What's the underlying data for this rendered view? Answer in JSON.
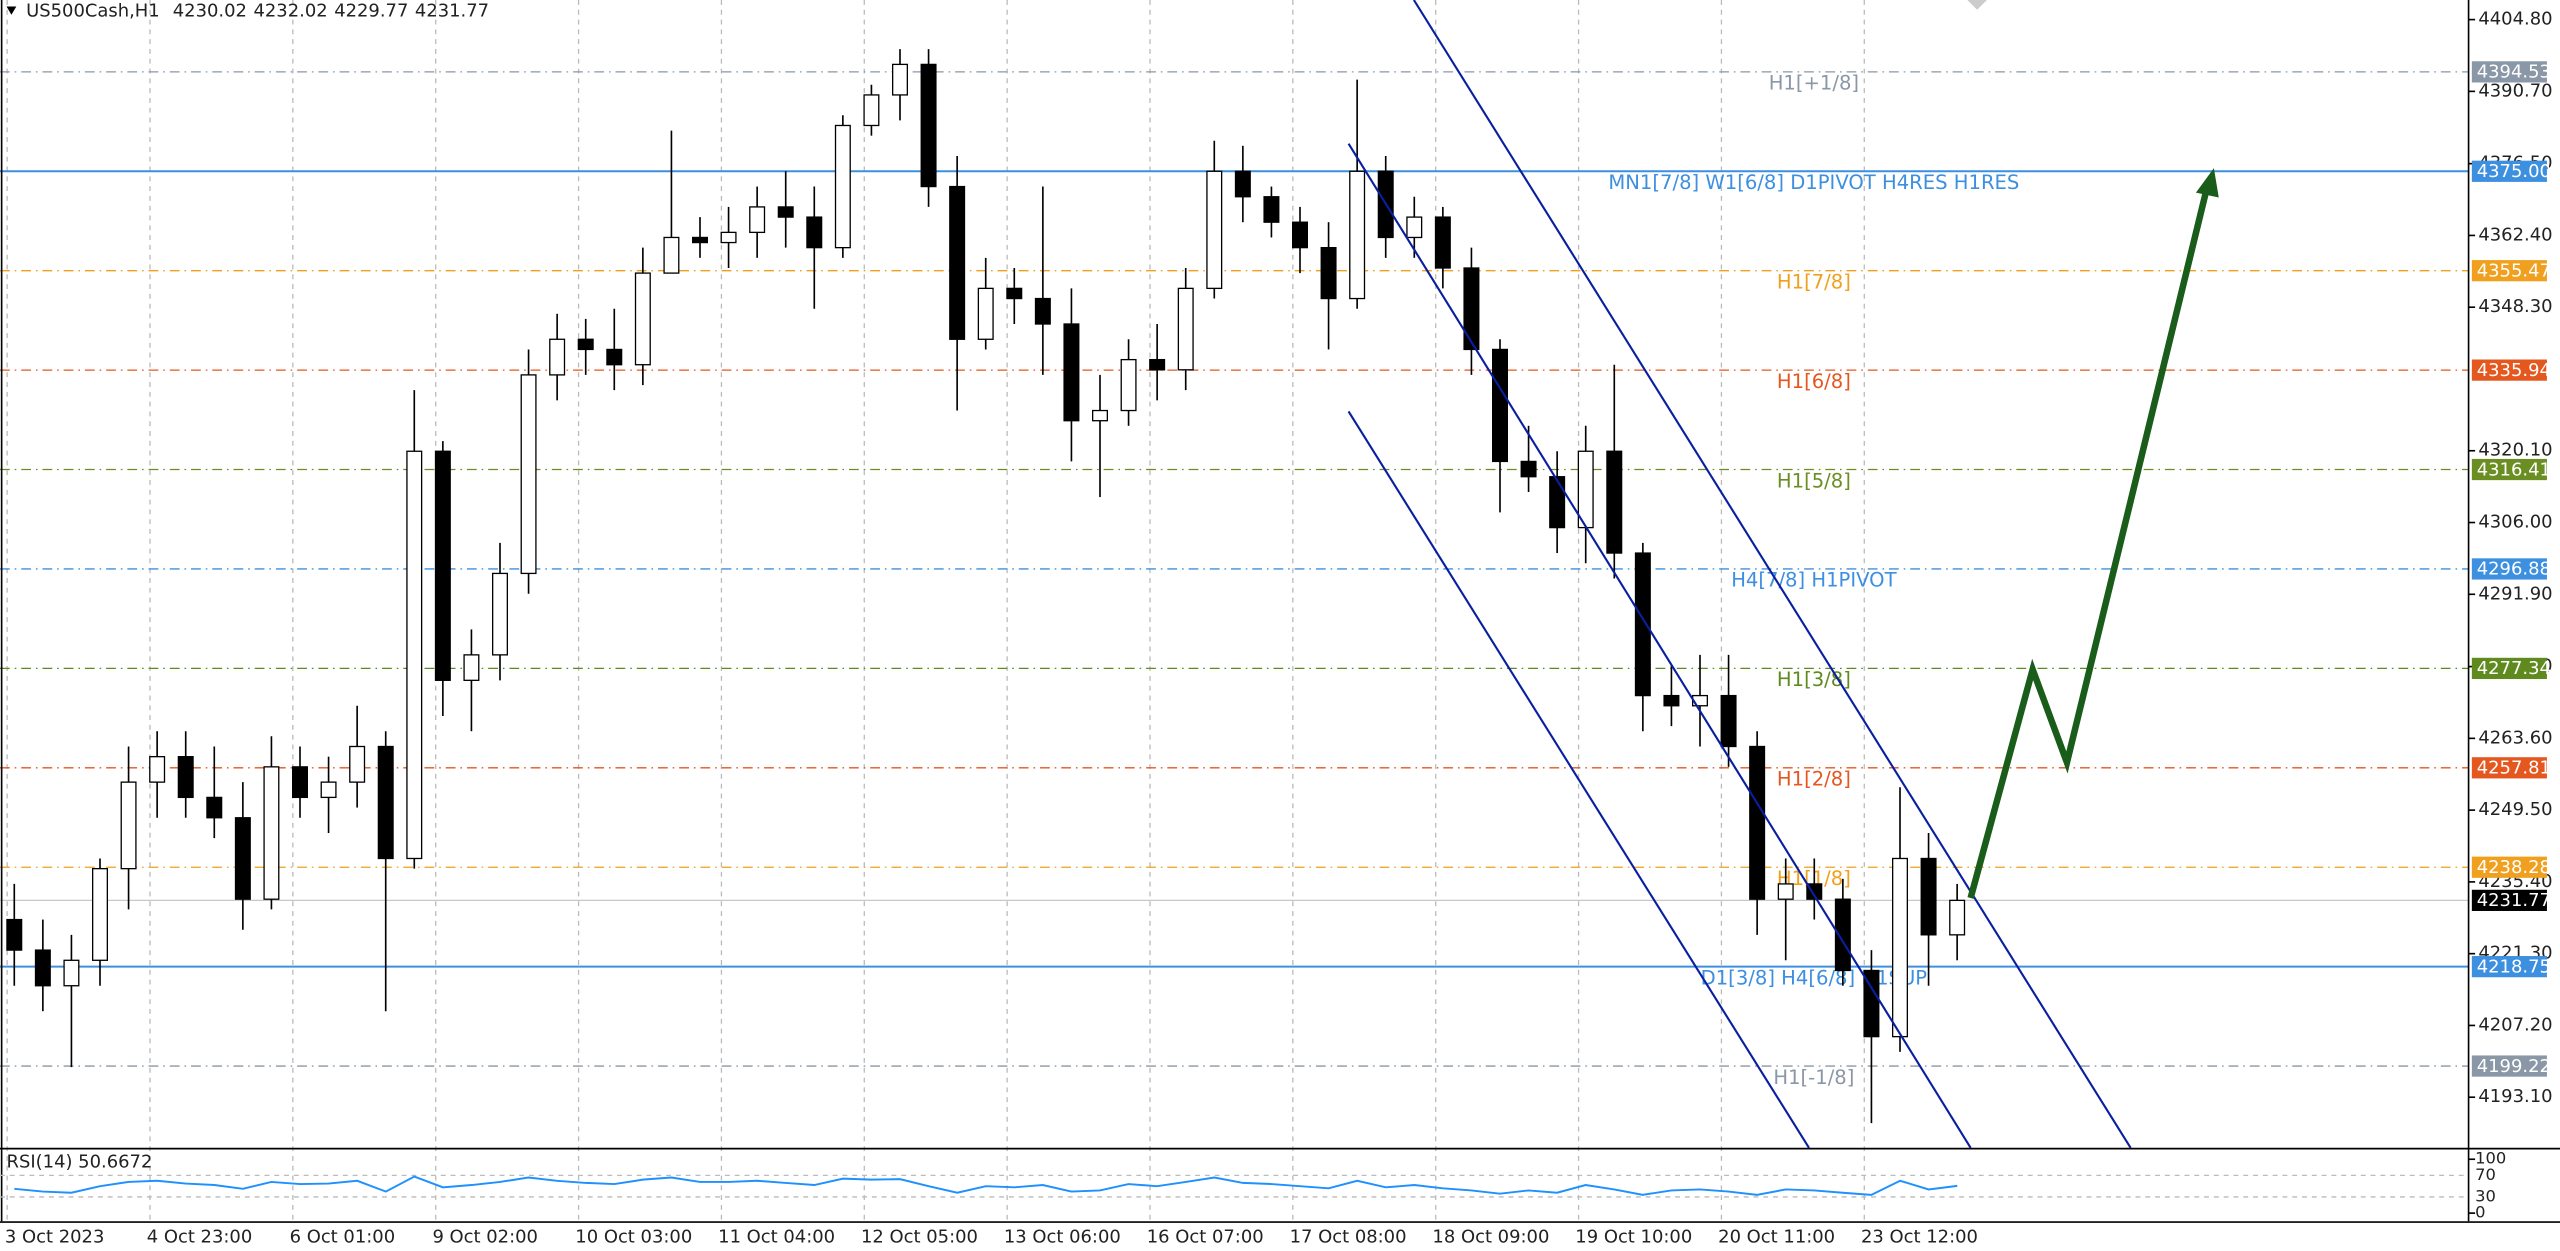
{
  "chart_data": {
    "type": "candlestick",
    "title": "US500Cash,H1",
    "quote": [
      4230.02,
      4232.02,
      4229.77,
      4231.77
    ],
    "x": [
      2,
      6,
      10,
      14,
      18,
      22,
      26,
      30,
      34,
      38,
      42,
      46,
      50,
      54,
      58,
      62,
      66,
      70,
      74,
      78,
      82,
      86,
      90,
      94,
      98,
      102,
      106,
      110,
      114,
      118,
      122,
      126,
      130,
      134,
      138,
      142,
      146,
      150,
      154,
      158,
      162,
      166,
      170,
      174,
      178,
      182,
      186,
      190,
      194,
      198,
      202,
      206,
      210,
      214,
      218,
      222,
      226,
      230,
      234,
      238,
      242,
      246,
      250,
      254,
      258,
      262,
      266,
      270,
      274
    ],
    "open": [
      4228,
      4222,
      4215,
      4220,
      4238,
      4255,
      4260,
      4252,
      4248,
      4232,
      4258,
      4252,
      4255,
      4262,
      4240,
      4320,
      4275,
      4280,
      4296,
      4335,
      4342,
      4340,
      4337,
      4355,
      4362,
      4361,
      4363,
      4368,
      4366,
      4360,
      4384,
      4390,
      4396,
      4372,
      4342,
      4352,
      4350,
      4345,
      4326,
      4328,
      4338,
      4336,
      4352,
      4375,
      4370,
      4365,
      4360,
      4350,
      4375,
      4362,
      4366,
      4356,
      4340,
      4318,
      4315,
      4305,
      4320,
      4300,
      4272,
      4270,
      4272,
      4262,
      4232,
      4235,
      4232,
      4218,
      4205,
      4240,
      4225
    ],
    "high": [
      4235,
      4228,
      4225,
      4240,
      4262,
      4265,
      4265,
      4262,
      4255,
      4264,
      4262,
      4260,
      4270,
      4265,
      4332,
      4322,
      4285,
      4302,
      4340,
      4347,
      4346,
      4348,
      4360,
      4383,
      4366,
      4368,
      4372,
      4375,
      4372,
      4386,
      4392,
      4399,
      4399,
      4378,
      4358,
      4356,
      4372,
      4352,
      4335,
      4342,
      4345,
      4356,
      4381,
      4380,
      4372,
      4368,
      4365,
      4393,
      4378,
      4370,
      4368,
      4360,
      4342,
      4325,
      4320,
      4325,
      4337,
      4302,
      4278,
      4280,
      4280,
      4265,
      4240,
      4240,
      4236,
      4222,
      4254,
      4245,
      4235
    ],
    "low": [
      4215,
      4210,
      4199,
      4215,
      4230,
      4248,
      4248,
      4244,
      4226,
      4230,
      4248,
      4245,
      4250,
      4210,
      4238,
      4268,
      4265,
      4275,
      4292,
      4330,
      4335,
      4332,
      4333,
      4355,
      4358,
      4356,
      4358,
      4360,
      4348,
      4358,
      4382,
      4385,
      4368,
      4328,
      4340,
      4345,
      4335,
      4318,
      4311,
      4325,
      4330,
      4332,
      4350,
      4365,
      4362,
      4355,
      4340,
      4348,
      4358,
      4358,
      4352,
      4335,
      4308,
      4312,
      4300,
      4298,
      4295,
      4265,
      4266,
      4262,
      4258,
      4225,
      4220,
      4228,
      4215,
      4188,
      4202,
      4215,
      4220
    ],
    "close": [
      4222,
      4215,
      4220,
      4238,
      4255,
      4260,
      4252,
      4248,
      4232,
      4258,
      4252,
      4255,
      4262,
      4240,
      4320,
      4275,
      4280,
      4296,
      4335,
      4342,
      4340,
      4337,
      4355,
      4362,
      4361,
      4363,
      4368,
      4366,
      4360,
      4384,
      4390,
      4396,
      4372,
      4342,
      4352,
      4350,
      4345,
      4326,
      4328,
      4338,
      4336,
      4352,
      4375,
      4370,
      4365,
      4360,
      4350,
      4375,
      4362,
      4366,
      4356,
      4340,
      4318,
      4315,
      4305,
      4320,
      4300,
      4272,
      4270,
      4272,
      4262,
      4232,
      4235,
      4232,
      4218,
      4205,
      4240,
      4225,
      4231.77
    ],
    "xlim": [
      0,
      345.6
    ],
    "xticks": [
      {
        "value": 1,
        "label": "3 Oct 2023"
      },
      {
        "value": 21,
        "label": "4 Oct 23:00"
      },
      {
        "value": 41,
        "label": "6 Oct 01:00"
      },
      {
        "value": 61,
        "label": "9 Oct 02:00"
      },
      {
        "value": 81,
        "label": "10 Oct 03:00"
      },
      {
        "value": 101,
        "label": "11 Oct 04:00"
      },
      {
        "value": 121,
        "label": "12 Oct 05:00"
      },
      {
        "value": 141,
        "label": "13 Oct 06:00"
      },
      {
        "value": 161,
        "label": "16 Oct 07:00"
      },
      {
        "value": 181,
        "label": "17 Oct 08:00"
      },
      {
        "value": 201,
        "label": "18 Oct 09:00"
      },
      {
        "value": 221,
        "label": "19 Oct 10:00"
      },
      {
        "value": 241,
        "label": "20 Oct 11:00"
      },
      {
        "value": 261,
        "label": "23 Oct 12:00"
      }
    ],
    "ylim": [
      4183.16,
      4408.65
    ],
    "yticks": [
      {
        "value": 4404.8,
        "label": "4404.80"
      },
      {
        "value": 4390.7,
        "label": "4390.70"
      },
      {
        "value": 4376.5,
        "label": "4376.50"
      },
      {
        "value": 4362.4,
        "label": "4362.40"
      },
      {
        "value": 4348.3,
        "label": "4348.30"
      },
      {
        "value": 4320.1,
        "label": "4320.10"
      },
      {
        "value": 4306,
        "label": "4306.00"
      },
      {
        "value": 4291.9,
        "label": "4291.90"
      },
      {
        "value": 4277.7,
        "label": "4277.70"
      },
      {
        "value": 4263.6,
        "label": "4263.60"
      },
      {
        "value": 4249.5,
        "label": "4249.50"
      },
      {
        "value": 4235.4,
        "label": "4235.40"
      },
      {
        "value": 4221.3,
        "label": "4221.30"
      },
      {
        "value": 4207.2,
        "label": "4207.20"
      },
      {
        "value": 4193.1,
        "label": "4193.10"
      }
    ],
    "grid": true,
    "levels": [
      {
        "name": "H1[+1/8]",
        "price": 4394.53,
        "color": "#8a97a6",
        "style": "dashdot"
      },
      {
        "name": "MN1[7/8] W1[6/8] D1PIVOT H4RES H1RES",
        "price": {
          "value": 4375,
          "label": "4375.00"
        },
        "color": "#3d8fe0",
        "style": "solid"
      },
      {
        "name": "H1[7/8]",
        "price": 4355.47,
        "color": "#f0a01e",
        "style": "dashdot"
      },
      {
        "name": "H1[6/8]",
        "price": 4335.94,
        "color": "#e4571f",
        "style": "dashdot"
      },
      {
        "name": "H1[5/8]",
        "price": 4316.41,
        "color": "#6b8e23",
        "style": "dashdot"
      },
      {
        "name": "H4[7/8] H1PIVOT",
        "price": 4296.88,
        "color": "#3d8fe0",
        "style": "dashdot"
      },
      {
        "name": "H1[3/8]",
        "price": 4277.34,
        "color": "#5f8a1e",
        "style": "dashdot"
      },
      {
        "name": "H1[2/8]",
        "price": 4257.81,
        "color": "#e4571f",
        "style": "dashdot"
      },
      {
        "name": "H1[1/8]",
        "price": 4238.28,
        "color": "#f0a01e",
        "style": "dashdot"
      },
      {
        "name": "D1[3/8] H4[6/8] H1SUP",
        "price": 4218.75,
        "color": "#3d8fe0",
        "style": "solid"
      },
      {
        "name": "H1[-1/8]",
        "price": 4199.22,
        "color": "#8a97a6",
        "style": "dashdot"
      }
    ],
    "indicator": {
      "title": "RSI(14) 50.6672",
      "color": "#1e90ff",
      "values": [
        45,
        40,
        38,
        50,
        58,
        60,
        55,
        52,
        45,
        58,
        54,
        55,
        60,
        40,
        68,
        48,
        52,
        58,
        66,
        60,
        56,
        54,
        62,
        66,
        58,
        58,
        60,
        56,
        52,
        64,
        62,
        63,
        50,
        38,
        50,
        48,
        52,
        40,
        42,
        54,
        50,
        58,
        66,
        56,
        54,
        50,
        46,
        60,
        48,
        52,
        46,
        42,
        36,
        42,
        38,
        52,
        44,
        34,
        42,
        44,
        40,
        34,
        44,
        42,
        38,
        34,
        60,
        44,
        50.6672
      ],
      "ylim": [
        0,
        100
      ],
      "yticks": [
        100,
        70,
        30,
        0
      ]
    }
  }
}
